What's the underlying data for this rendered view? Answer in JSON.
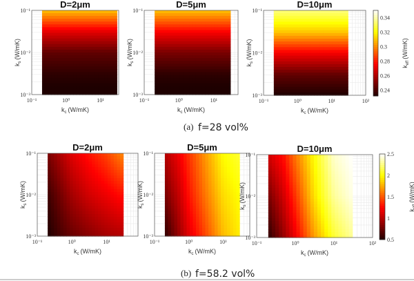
{
  "figure": {
    "caption_a_label": "(a)",
    "caption_a_text": "f=28 vol%",
    "caption_b_label": "(b)",
    "caption_b_text": "f=58.2 vol%"
  },
  "chart_data": [
    {
      "type": "heatmap",
      "row": "a",
      "title": "D=2μm",
      "colormap": "hot",
      "xlabel": {
        "sym": "k",
        "sub": "c",
        "unit": "(W/mK)"
      },
      "ylabel": {
        "sym": "k",
        "sub": "s",
        "unit": "(W/mK)"
      },
      "x_scale": "log",
      "y_scale": "log",
      "xlim": [
        0.1,
        34
      ],
      "ylim": [
        0.001,
        0.1
      ],
      "xticks": [
        "10⁻¹",
        "10⁰",
        "10¹"
      ],
      "xtick_values": [
        0.1,
        1,
        10
      ],
      "yticks": [
        "10⁻³",
        "10⁻²",
        "10⁻¹"
      ],
      "ytick_values": [
        0.001,
        0.01,
        0.1
      ],
      "kc": [
        0.2,
        30
      ],
      "ks": [
        0.001,
        0.003,
        0.01,
        0.03,
        0.1
      ],
      "values": [
        [
          0.23,
          0.23
        ],
        [
          0.235,
          0.235
        ],
        [
          0.245,
          0.245
        ],
        [
          0.27,
          0.27
        ],
        [
          0.31,
          0.31
        ]
      ]
    },
    {
      "type": "heatmap",
      "row": "a",
      "title": "D=5μm",
      "colormap": "hot",
      "xlabel": {
        "sym": "k",
        "sub": "c",
        "unit": "(W/mK)"
      },
      "ylabel": {
        "sym": "k",
        "sub": "s",
        "unit": "(W/mK)"
      },
      "x_scale": "log",
      "y_scale": "log",
      "xlim": [
        0.1,
        50
      ],
      "ylim": [
        0.001,
        0.1
      ],
      "xticks": [
        "10⁻¹",
        "10⁰",
        "10¹"
      ],
      "xtick_values": [
        0.1,
        1,
        10
      ],
      "yticks": [
        "10⁻³",
        "10⁻²",
        "10⁻¹"
      ],
      "ytick_values": [
        0.001,
        0.01,
        0.1
      ],
      "kc": [
        0.2,
        30
      ],
      "ks": [
        0.001,
        0.003,
        0.01,
        0.03,
        0.1
      ],
      "values": [
        [
          0.23,
          0.23
        ],
        [
          0.235,
          0.235
        ],
        [
          0.25,
          0.25
        ],
        [
          0.275,
          0.275
        ],
        [
          0.31,
          0.31
        ]
      ]
    },
    {
      "type": "heatmap",
      "row": "a",
      "title": "D=10μm",
      "colormap": "hot",
      "xlabel": {
        "sym": "k",
        "sub": "c",
        "unit": "(W/mK)"
      },
      "ylabel": {
        "sym": "k",
        "sub": "s",
        "unit": "(W/mK)"
      },
      "x_scale": "log",
      "y_scale": "log",
      "xlim": [
        0.1,
        100
      ],
      "ylim": [
        0.001,
        0.1
      ],
      "xticks": [
        "10⁻¹",
        "10⁰",
        "10¹",
        "10²"
      ],
      "xtick_values": [
        0.1,
        1,
        10,
        100
      ],
      "yticks": [
        "10⁻³",
        "10⁻²",
        "10⁻¹"
      ],
      "ytick_values": [
        0.001,
        0.01,
        0.1
      ],
      "kc": [
        0.2,
        30
      ],
      "ks": [
        0.001,
        0.003,
        0.01,
        0.03,
        0.1
      ],
      "values": [
        [
          0.232,
          0.232
        ],
        [
          0.245,
          0.245
        ],
        [
          0.275,
          0.275
        ],
        [
          0.31,
          0.31
        ],
        [
          0.335,
          0.335
        ]
      ]
    },
    {
      "type": "heatmap",
      "row": "b",
      "title": "D=2μm",
      "colormap": "hot",
      "xlabel": {
        "sym": "k",
        "sub": "c",
        "unit": "(W/mK)"
      },
      "ylabel": {
        "sym": "k",
        "sub": "s",
        "unit": "(W/mK)"
      },
      "x_scale": "log",
      "y_scale": "log",
      "xlim": [
        0.1,
        80
      ],
      "ylim": [
        0.001,
        0.1
      ],
      "xticks": [
        "10⁻¹",
        "10⁰",
        "10¹"
      ],
      "xtick_values": [
        0.1,
        1,
        10
      ],
      "yticks": [
        "10⁻³",
        "10⁻²",
        "10⁻¹"
      ],
      "ytick_values": [
        0.001,
        0.01,
        0.1
      ],
      "kc": [
        0.2,
        0.5,
        1,
        3,
        10,
        30
      ],
      "ks": [
        0.001,
        0.01,
        0.1
      ],
      "values": [
        [
          0.5,
          0.65,
          0.75,
          0.85,
          0.95,
          1.0
        ],
        [
          0.6,
          0.8,
          0.95,
          1.1,
          1.2,
          1.3
        ],
        [
          0.8,
          1.0,
          1.15,
          1.3,
          1.45,
          1.65
        ]
      ]
    },
    {
      "type": "heatmap",
      "row": "b",
      "title": "D=5μm",
      "colormap": "hot",
      "xlabel": {
        "sym": "k",
        "sub": "c",
        "unit": "(W/mK)"
      },
      "ylabel": {
        "sym": "k",
        "sub": "s",
        "unit": "(W/mK)"
      },
      "x_scale": "log",
      "y_scale": "log",
      "xlim": [
        0.1,
        60
      ],
      "ylim": [
        0.001,
        0.1
      ],
      "xticks": [
        "10⁻¹",
        "10⁰",
        "10¹"
      ],
      "xtick_values": [
        0.1,
        1,
        10
      ],
      "yticks": [
        "10⁻³",
        "10⁻²",
        "10⁻¹"
      ],
      "ytick_values": [
        0.001,
        0.01,
        0.1
      ],
      "kc": [
        0.2,
        0.5,
        1,
        3,
        10,
        30
      ],
      "ks": [
        0.001,
        0.01,
        0.1
      ],
      "values": [
        [
          0.55,
          0.9,
          1.15,
          1.45,
          1.8,
          1.95
        ],
        [
          0.8,
          1.05,
          1.3,
          1.6,
          1.9,
          2.0
        ],
        [
          1.0,
          1.2,
          1.4,
          1.7,
          2.0,
          2.1
        ]
      ]
    },
    {
      "type": "heatmap",
      "row": "b",
      "title": "D=10μm",
      "colormap": "hot",
      "xlabel": {
        "sym": "k",
        "sub": "c",
        "unit": "(W/mK)"
      },
      "ylabel": {
        "sym": "k",
        "sub": "s",
        "unit": "(W/mK)"
      },
      "x_scale": "log",
      "y_scale": "log",
      "xlim": [
        0.1,
        100
      ],
      "ylim": [
        0.001,
        0.1
      ],
      "xticks": [
        "10⁻¹",
        "10⁰",
        "10¹",
        "10²"
      ],
      "xtick_values": [
        0.1,
        1,
        10,
        100
      ],
      "yticks": [
        "10⁻³",
        "10⁻²",
        "10⁻¹"
      ],
      "ytick_values": [
        0.001,
        0.01,
        0.1
      ],
      "kc": [
        0.2,
        0.5,
        1,
        3,
        10,
        30
      ],
      "ks": [
        0.001,
        0.01,
        0.1
      ],
      "values": [
        [
          0.55,
          0.9,
          1.2,
          1.7,
          2.1,
          2.3
        ],
        [
          0.8,
          1.1,
          1.4,
          1.9,
          2.3,
          2.45
        ],
        [
          1.1,
          1.3,
          1.6,
          2.0,
          2.4,
          2.5
        ]
      ]
    }
  ],
  "colorbars": [
    {
      "row": "a",
      "label": {
        "sym": "k",
        "sub": "eff",
        "unit": "(W/mK)"
      },
      "range": [
        0.232,
        0.35
      ],
      "ticks": [
        "0.24",
        "0.26",
        "0.28",
        "0.3",
        "0.32",
        "0.34"
      ],
      "tick_values": [
        0.24,
        0.26,
        0.28,
        0.3,
        0.32,
        0.34
      ]
    },
    {
      "row": "b",
      "label": {
        "sym": "k",
        "sub": "eff",
        "unit": "(W/mK)"
      },
      "range": [
        0.5,
        2.5
      ],
      "ticks": [
        "0.5",
        "1",
        "1.5",
        "2",
        "2.5"
      ],
      "tick_values": [
        0.5,
        1,
        1.5,
        2,
        2.5
      ]
    }
  ]
}
